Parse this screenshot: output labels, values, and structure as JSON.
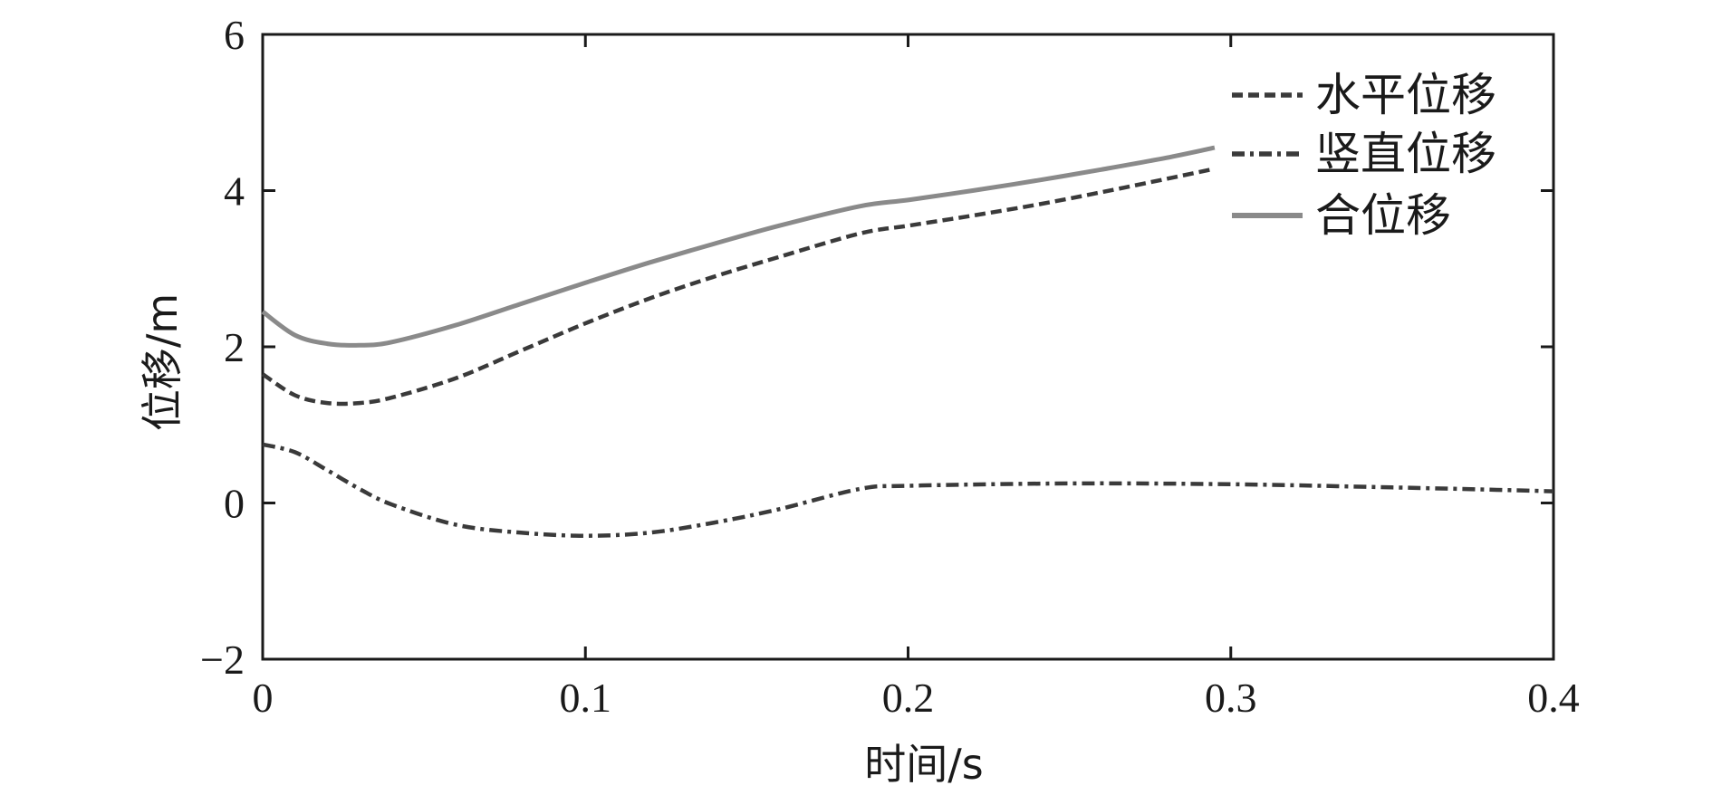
{
  "chart_data": {
    "type": "line",
    "title": "",
    "xlabel": "时间/s",
    "ylabel": "位移/m",
    "xlim": [
      0,
      0.4
    ],
    "ylim": [
      -2,
      6
    ],
    "xticks": [
      0,
      0.1,
      0.2,
      0.3,
      0.4
    ],
    "xtick_labels": [
      "0",
      "0.1",
      "0.2",
      "0.3",
      "0.4"
    ],
    "yticks": [
      -2,
      0,
      2,
      4,
      6
    ],
    "ytick_labels": [
      "−2",
      "0",
      "2",
      "4",
      "6"
    ],
    "grid": false,
    "legend_position": "top-right",
    "series": [
      {
        "name": "水平位移",
        "style": "dashed",
        "color": "#3a3a3a",
        "x": [
          0,
          0.01,
          0.02,
          0.03,
          0.04,
          0.06,
          0.08,
          0.1,
          0.12,
          0.14,
          0.16,
          0.185,
          0.2,
          0.22,
          0.24,
          0.26,
          0.28,
          0.295
        ],
        "y": [
          1.65,
          1.38,
          1.28,
          1.28,
          1.35,
          1.6,
          1.95,
          2.3,
          2.62,
          2.9,
          3.15,
          3.45,
          3.55,
          3.68,
          3.82,
          3.98,
          4.15,
          4.28
        ]
      },
      {
        "name": "竖直位移",
        "style": "dashdot",
        "color": "#3a3a3a",
        "x": [
          0,
          0.01,
          0.02,
          0.03,
          0.04,
          0.06,
          0.08,
          0.1,
          0.12,
          0.14,
          0.16,
          0.185,
          0.2,
          0.25,
          0.3,
          0.35,
          0.4
        ],
        "y": [
          0.75,
          0.65,
          0.42,
          0.18,
          -0.02,
          -0.28,
          -0.38,
          -0.42,
          -0.38,
          -0.25,
          -0.08,
          0.18,
          0.22,
          0.25,
          0.24,
          0.2,
          0.15
        ]
      },
      {
        "name": "合位移",
        "style": "solid",
        "color": "#8a8a8a",
        "x": [
          0,
          0.01,
          0.02,
          0.03,
          0.04,
          0.06,
          0.08,
          0.1,
          0.12,
          0.14,
          0.16,
          0.185,
          0.2,
          0.22,
          0.24,
          0.26,
          0.28,
          0.295
        ],
        "y": [
          2.45,
          2.15,
          2.04,
          2.02,
          2.06,
          2.28,
          2.55,
          2.82,
          3.08,
          3.32,
          3.55,
          3.8,
          3.88,
          4.0,
          4.13,
          4.27,
          4.42,
          4.55
        ]
      }
    ]
  }
}
